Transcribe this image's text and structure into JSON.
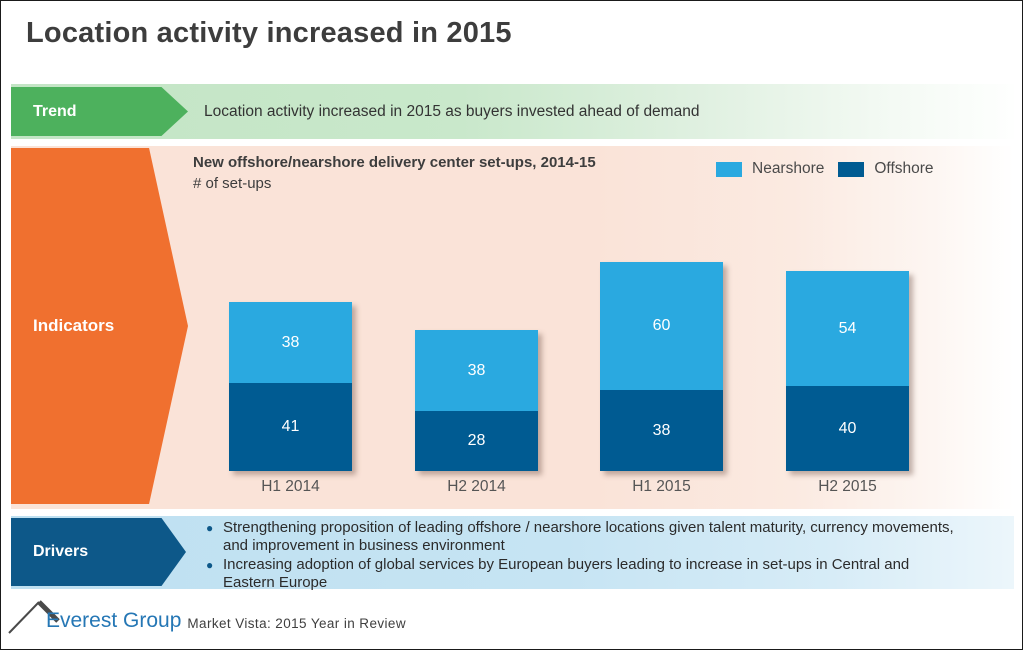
{
  "slide": {
    "title": "Location activity increased in 2015"
  },
  "trend": {
    "label": "Trend",
    "text": "Location activity increased in 2015 as buyers invested ahead of demand"
  },
  "indicators": {
    "label": "Indicators",
    "chart_title": "New offshore/nearshore delivery center set-ups, 2014-15",
    "chart_subtitle": "# of set-ups"
  },
  "chart_data": {
    "type": "bar",
    "stacked": true,
    "title": "New offshore/nearshore delivery center set-ups, 2014-15",
    "ylabel": "# of set-ups",
    "categories": [
      "H1 2014",
      "H2 2014",
      "H1 2015",
      "H2 2015"
    ],
    "series": [
      {
        "name": "Offshore",
        "color": "#005b92",
        "values": [
          41,
          28,
          38,
          40
        ]
      },
      {
        "name": "Nearshore",
        "color": "#2aa9e0",
        "values": [
          38,
          38,
          60,
          54
        ]
      }
    ],
    "totals": [
      79,
      66,
      98,
      94
    ],
    "legend": [
      "Nearshore",
      "Offshore"
    ],
    "legend_position": "top-right",
    "grid": false,
    "value_labels": true
  },
  "drivers": {
    "label": "Drivers",
    "bullets": [
      "Strengthening proposition of leading offshore / nearshore locations given talent maturity, currency movements, and improvement in business environment",
      "Increasing adoption of global services by European buyers leading to increase in set-ups in Central and Eastern Europe"
    ]
  },
  "footer": {
    "brand": "Everest Group",
    "caption": "Market Vista: 2015 Year in Review"
  },
  "colors": {
    "trend_green": "#4db15d",
    "indicators_orange": "#f0702f",
    "drivers_blue": "#0d5889",
    "nearshore": "#2aa9e0",
    "offshore": "#005b92",
    "brand_blue": "#2577b5"
  }
}
